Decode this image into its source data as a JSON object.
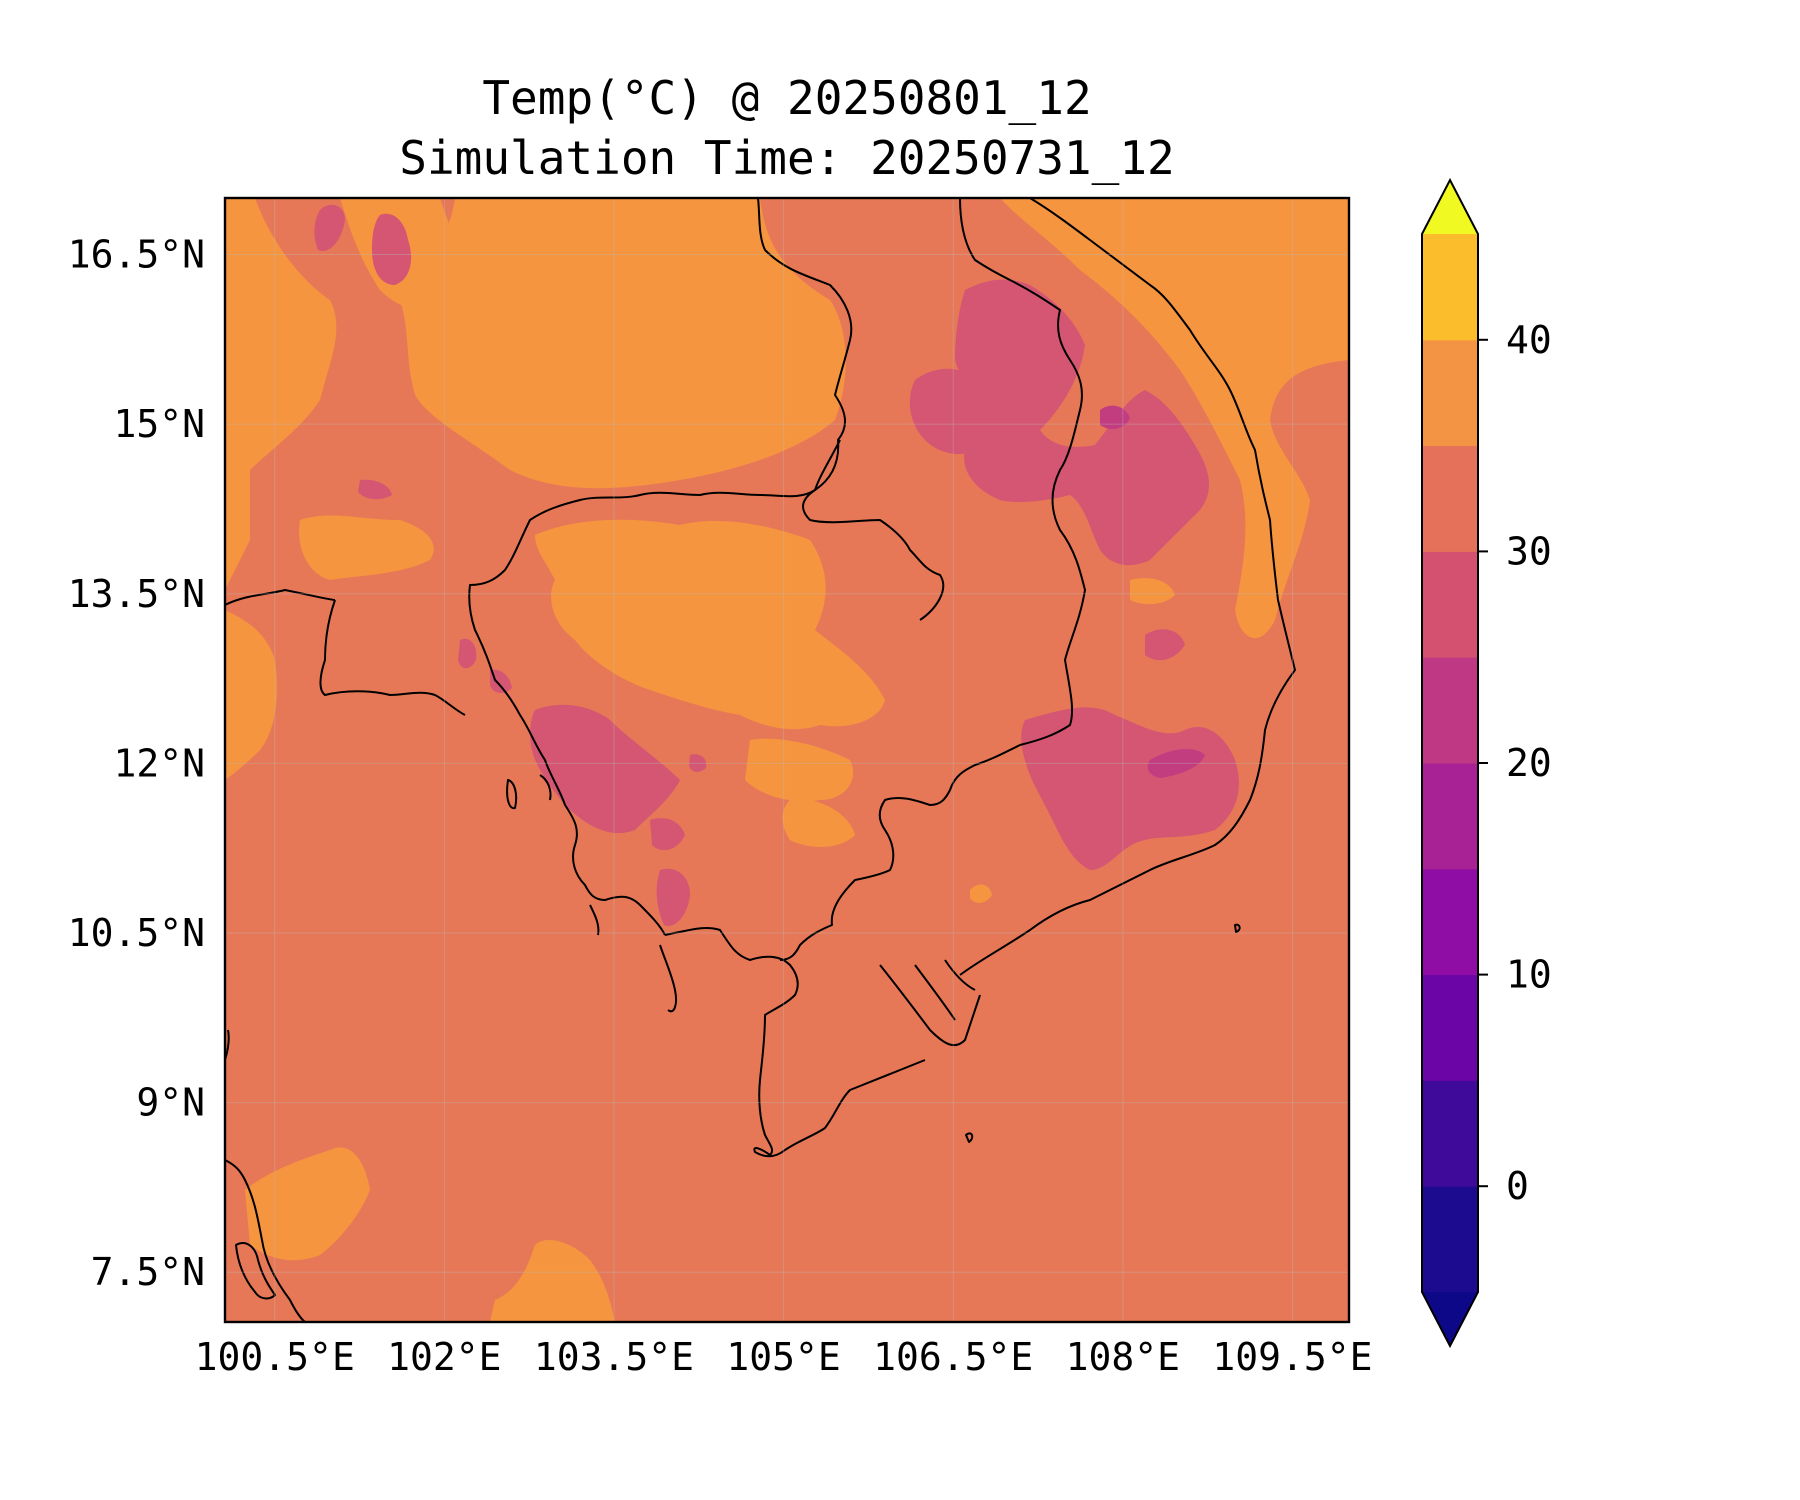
{
  "title": {
    "line1": "Temp(°C) @ 20250801_12",
    "line2": "Simulation Time: 20250731_12"
  },
  "map": {
    "x_ticks": [
      {
        "lon": 100.5,
        "label": "100.5°E"
      },
      {
        "lon": 102.0,
        "label": "102°E"
      },
      {
        "lon": 103.5,
        "label": "103.5°E"
      },
      {
        "lon": 105.0,
        "label": "105°E"
      },
      {
        "lon": 106.5,
        "label": "106.5°E"
      },
      {
        "lon": 108.0,
        "label": "108°E"
      },
      {
        "lon": 109.5,
        "label": "109.5°E"
      }
    ],
    "y_ticks": [
      {
        "lat": 16.5,
        "label": "16.5°N"
      },
      {
        "lat": 15.0,
        "label": "15°N"
      },
      {
        "lat": 13.5,
        "label": "13.5°N"
      },
      {
        "lat": 12.0,
        "label": "12°N"
      },
      {
        "lat": 10.5,
        "label": "10.5°N"
      },
      {
        "lat": 9.0,
        "label": "9°N"
      },
      {
        "lat": 7.5,
        "label": "7.5°N"
      }
    ],
    "lon_range": [
      100.06,
      110.0
    ],
    "lat_range": [
      7.06,
      17.0
    ],
    "grid": true
  },
  "colorbar": {
    "levels": [
      -5,
      0,
      5,
      10,
      15,
      20,
      25,
      30,
      35,
      40,
      45
    ],
    "colors": [
      "#1c0b8f",
      "#3f0a9a",
      "#6b05a6",
      "#8f0da4",
      "#a82296",
      "#be3883",
      "#d45270",
      "#e5715a",
      "#f39444",
      "#fbbd2c",
      "#f2e41e"
    ],
    "under_color": "#0d0887",
    "over_color": "#f0f921",
    "extend": "both",
    "ticks": [
      {
        "value": 0,
        "label": "0"
      },
      {
        "value": 10,
        "label": "10"
      },
      {
        "value": 20,
        "label": "20"
      },
      {
        "value": 30,
        "label": "30"
      },
      {
        "value": 40,
        "label": "40"
      }
    ]
  },
  "field_colors": {
    "base_25_30": "#e77857",
    "warm_30_35": "#f6953f",
    "cool_20_25": "#d55673",
    "cold_15_20": "#c23d80"
  }
}
